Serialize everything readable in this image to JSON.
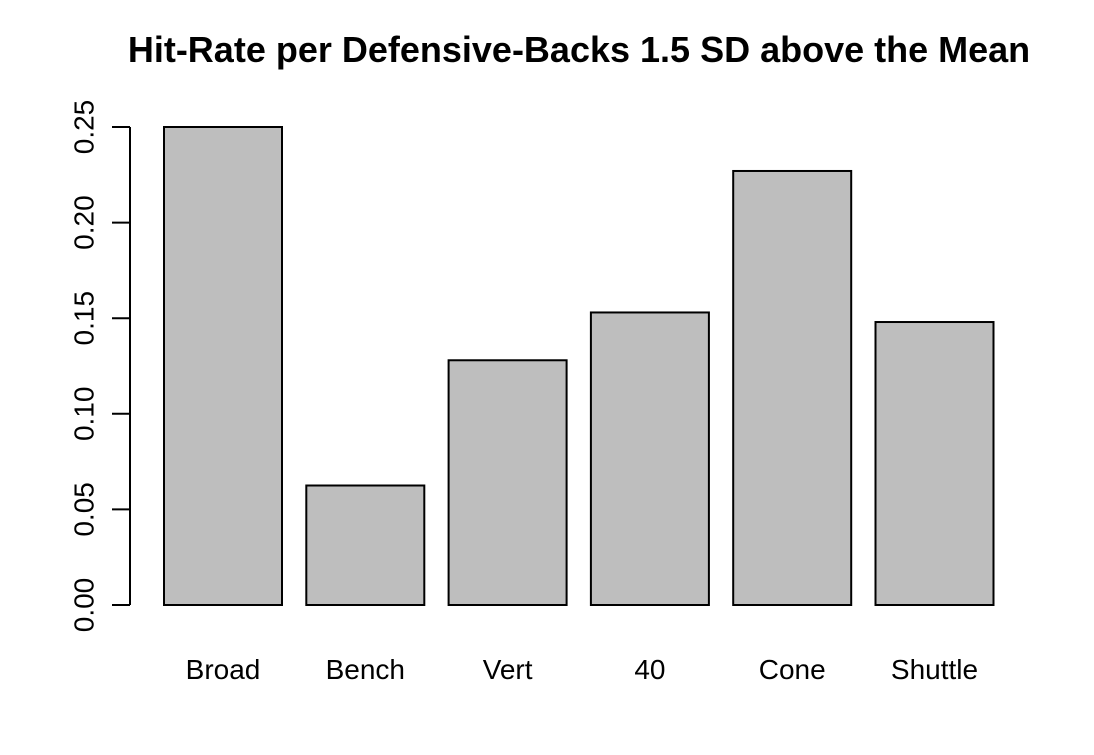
{
  "chart_data": {
    "type": "bar",
    "title": "Hit-Rate per Defensive-Backs 1.5 SD above the Mean",
    "xlabel": "",
    "ylabel": "",
    "categories": [
      "Broad",
      "Bench",
      "Vert",
      "40",
      "Cone",
      "Shuttle"
    ],
    "values": [
      0.25,
      0.0625,
      0.128,
      0.153,
      0.227,
      0.148
    ],
    "ylim": [
      0,
      0.25
    ],
    "yticks": [
      "0.00",
      "0.05",
      "0.10",
      "0.15",
      "0.20",
      "0.25"
    ],
    "grid": false,
    "bar_color": "#bebebe",
    "edge_color": "#000000"
  }
}
